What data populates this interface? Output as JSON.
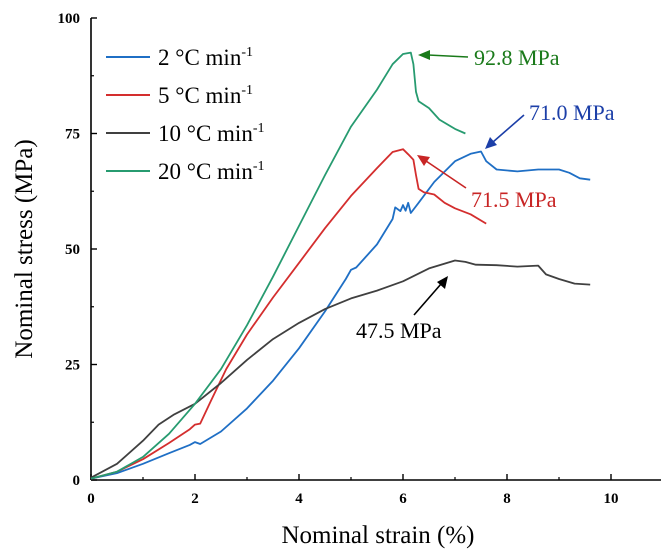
{
  "chart_data": {
    "type": "line",
    "xlabel": "Nominal strain (%)",
    "ylabel": "Nominal stress (MPa)",
    "xlim": [
      0,
      11
    ],
    "ylim": [
      0,
      100
    ],
    "xticks": [
      0,
      2,
      4,
      6,
      8,
      10
    ],
    "yticks": [
      0,
      25,
      50,
      75,
      100
    ],
    "legend_position": "top-left",
    "grid": false,
    "series": [
      {
        "name": "2 °C min",
        "name_sup": "-1",
        "color": "#1f6fc5",
        "points": [
          [
            0,
            0.3
          ],
          [
            0.5,
            1.5
          ],
          [
            1,
            3.5
          ],
          [
            1.5,
            5.8
          ],
          [
            1.9,
            7.6
          ],
          [
            2.0,
            8.2
          ],
          [
            2.1,
            7.8
          ],
          [
            2.5,
            10.5
          ],
          [
            3,
            15.5
          ],
          [
            3.5,
            21.5
          ],
          [
            4,
            28.5
          ],
          [
            4.5,
            36.5
          ],
          [
            4.9,
            43.5
          ],
          [
            5.0,
            45.5
          ],
          [
            5.1,
            46
          ],
          [
            5.5,
            51
          ],
          [
            5.8,
            56.5
          ],
          [
            5.85,
            59
          ],
          [
            5.95,
            58.2
          ],
          [
            6.0,
            59.5
          ],
          [
            6.05,
            58.3
          ],
          [
            6.1,
            60
          ],
          [
            6.15,
            57.8
          ],
          [
            6.3,
            60
          ],
          [
            6.6,
            64.5
          ],
          [
            7.0,
            69
          ],
          [
            7.3,
            70.6
          ],
          [
            7.5,
            71.1
          ],
          [
            7.6,
            69
          ],
          [
            7.8,
            67.2
          ],
          [
            8.2,
            66.8
          ],
          [
            8.6,
            67.2
          ],
          [
            9.0,
            67.2
          ],
          [
            9.2,
            66.5
          ],
          [
            9.4,
            65.3
          ],
          [
            9.6,
            65.0
          ]
        ]
      },
      {
        "name": "5 °C min",
        "name_sup": "-1",
        "color": "#d42e2e",
        "points": [
          [
            0,
            0.3
          ],
          [
            0.5,
            1.8
          ],
          [
            1,
            4.5
          ],
          [
            1.5,
            8
          ],
          [
            1.9,
            11
          ],
          [
            2.0,
            12
          ],
          [
            2.1,
            12.2
          ],
          [
            2.3,
            17
          ],
          [
            2.6,
            24
          ],
          [
            3,
            31.5
          ],
          [
            3.5,
            39.5
          ],
          [
            4,
            47
          ],
          [
            4.5,
            54.5
          ],
          [
            5,
            61.5
          ],
          [
            5.5,
            67.5
          ],
          [
            5.8,
            71
          ],
          [
            6.0,
            71.6
          ],
          [
            6.1,
            70.5
          ],
          [
            6.2,
            69.3
          ],
          [
            6.25,
            66
          ],
          [
            6.3,
            63
          ],
          [
            6.4,
            62.3
          ],
          [
            6.6,
            61.8
          ],
          [
            6.8,
            60
          ],
          [
            7.0,
            58.8
          ],
          [
            7.3,
            57.5
          ],
          [
            7.6,
            55.5
          ]
        ]
      },
      {
        "name": "10 °C min",
        "name_sup": "-1",
        "color": "#404040",
        "points": [
          [
            0,
            0.5
          ],
          [
            0.5,
            3.5
          ],
          [
            1,
            8.5
          ],
          [
            1.3,
            12
          ],
          [
            1.6,
            14.2
          ],
          [
            2,
            16.5
          ],
          [
            2.5,
            21
          ],
          [
            3,
            26
          ],
          [
            3.5,
            30.5
          ],
          [
            4,
            34
          ],
          [
            4.5,
            37
          ],
          [
            5,
            39.3
          ],
          [
            5.5,
            41
          ],
          [
            6,
            43
          ],
          [
            6.5,
            45.8
          ],
          [
            7.0,
            47.5
          ],
          [
            7.2,
            47.2
          ],
          [
            7.4,
            46.6
          ],
          [
            7.8,
            46.5
          ],
          [
            8.2,
            46.2
          ],
          [
            8.6,
            46.4
          ],
          [
            8.75,
            44.5
          ],
          [
            9.0,
            43.5
          ],
          [
            9.3,
            42.5
          ],
          [
            9.6,
            42.3
          ]
        ]
      },
      {
        "name": "20 °C min",
        "name_sup": "-1",
        "color": "#279b70",
        "points": [
          [
            0,
            0.3
          ],
          [
            0.5,
            1.8
          ],
          [
            1,
            5
          ],
          [
            1.5,
            10
          ],
          [
            2,
            16.5
          ],
          [
            2.5,
            24
          ],
          [
            3,
            33.5
          ],
          [
            3.5,
            44
          ],
          [
            4,
            55
          ],
          [
            4.5,
            66
          ],
          [
            5,
            76.5
          ],
          [
            5.5,
            84.5
          ],
          [
            5.8,
            90
          ],
          [
            6.0,
            92.2
          ],
          [
            6.15,
            92.5
          ],
          [
            6.2,
            90
          ],
          [
            6.25,
            84
          ],
          [
            6.3,
            82
          ],
          [
            6.5,
            80.5
          ],
          [
            6.7,
            78
          ],
          [
            7.0,
            76
          ],
          [
            7.2,
            75
          ]
        ]
      }
    ],
    "annotations": [
      {
        "text": "92.8 MPa",
        "color": "#1a7a1a"
      },
      {
        "text": "71.0 MPa",
        "color": "#1c3fa8"
      },
      {
        "text": "71.5 MPa",
        "color": "#c82525"
      },
      {
        "text": "47.5 MPa",
        "color": "#000000"
      }
    ]
  }
}
